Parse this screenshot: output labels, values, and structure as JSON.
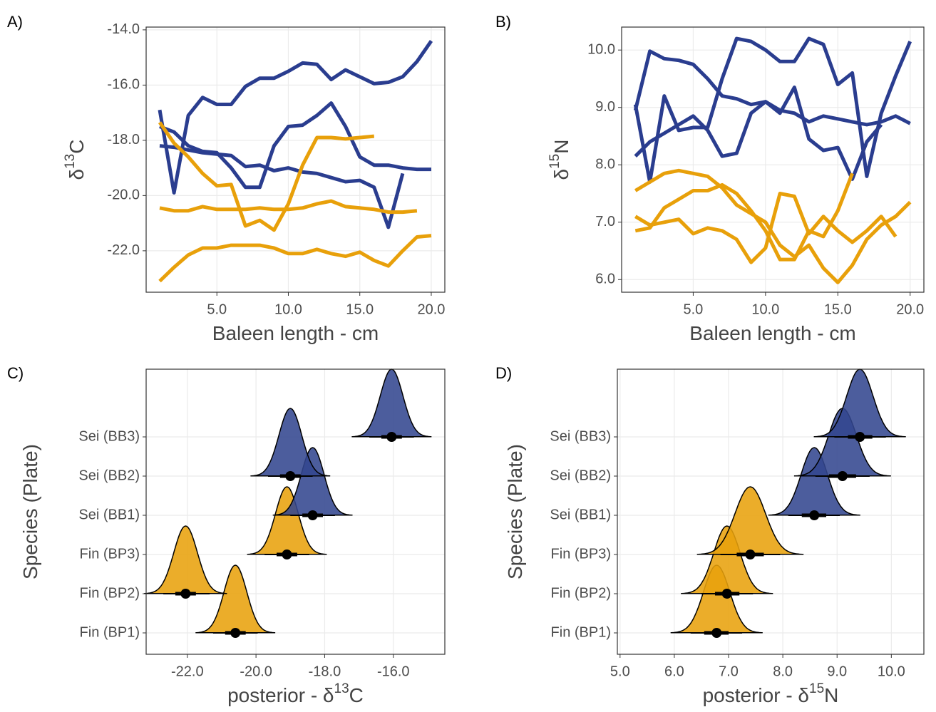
{
  "chart_data": [
    {
      "type": "line",
      "title": "A)",
      "x_label": [
        "Baleen length - cm"
      ],
      "y_label": [
        "δ",
        "13",
        "C"
      ],
      "x": [
        1,
        2,
        3,
        4,
        5,
        6,
        7,
        8,
        9,
        10,
        11,
        12,
        13,
        14,
        15,
        16,
        17,
        18,
        19,
        20
      ],
      "series": [
        {
          "color": "#2a3d8f",
          "values": [
            -16.9,
            -19.9,
            -17.1,
            -16.45,
            -16.7,
            -16.7,
            -16.05,
            -15.75,
            -15.75,
            -15.5,
            -15.2,
            -15.25,
            -15.8,
            -15.45,
            -15.7,
            -15.95,
            -15.9,
            -15.7,
            -15.15,
            -14.4
          ]
        },
        {
          "color": "#2a3d8f",
          "values": [
            -18.2,
            -18.25,
            -18.35,
            -18.45,
            -18.5,
            -18.55,
            -18.95,
            -18.9,
            -19.1,
            -19.0,
            -19.15,
            -19.2,
            -19.35,
            -19.5,
            -19.45,
            -19.7,
            -21.15,
            -19.2,
            null,
            null
          ]
        },
        {
          "color": "#2a3d8f",
          "values": [
            -17.5,
            -17.7,
            -18.2,
            -18.4,
            -18.45,
            -19.0,
            -19.7,
            -19.7,
            -18.2,
            -17.5,
            -17.45,
            -17.1,
            -16.65,
            -17.5,
            -18.6,
            -18.9,
            -18.9,
            -19.0,
            -19.05,
            -19.05
          ]
        },
        {
          "color": "#e8a00a",
          "values": [
            -17.35,
            -18.1,
            -18.6,
            -19.2,
            -19.65,
            -19.6,
            -21.1,
            -20.9,
            -21.25,
            -20.3,
            -18.9,
            -17.9,
            -17.9,
            -17.95,
            -17.9,
            -17.85,
            null,
            null,
            null,
            null
          ]
        },
        {
          "color": "#e8a00a",
          "values": [
            -20.45,
            -20.55,
            -20.55,
            -20.4,
            -20.5,
            -20.5,
            -20.5,
            -20.45,
            -20.5,
            -20.5,
            -20.45,
            -20.3,
            -20.2,
            -20.4,
            -20.45,
            -20.5,
            -20.6,
            -20.6,
            -20.55,
            null
          ]
        },
        {
          "color": "#e8a00a",
          "values": [
            -23.1,
            -22.6,
            -22.15,
            -21.9,
            -21.9,
            -21.8,
            -21.8,
            -21.8,
            -21.9,
            -22.1,
            -22.1,
            -21.95,
            -22.1,
            -22.2,
            -22.05,
            -22.35,
            -22.55,
            -22.0,
            -21.5,
            -21.45
          ]
        }
      ],
      "xlim": [
        0.05,
        20.95
      ],
      "xticks": [
        {
          "value": 5,
          "label": "5.0"
        },
        {
          "value": 10,
          "label": "10.0"
        },
        {
          "value": 15,
          "label": "15.0"
        },
        {
          "value": 20,
          "label": "20.0"
        }
      ],
      "ylim": [
        -23.5,
        -13.9
      ],
      "yticks": [
        {
          "value": -22,
          "label": "-22.0"
        },
        {
          "value": -20,
          "label": "-20.0"
        },
        {
          "value": -18,
          "label": "-18.0"
        },
        {
          "value": -16,
          "label": "-16.0"
        },
        {
          "value": -14,
          "label": "-14.0"
        }
      ],
      "grid": true
    },
    {
      "type": "line",
      "title": "B)",
      "x_label": [
        "Baleen length - cm"
      ],
      "y_label": [
        "δ",
        "15",
        "N"
      ],
      "x": [
        1,
        2,
        3,
        4,
        5,
        6,
        7,
        8,
        9,
        10,
        11,
        12,
        13,
        14,
        15,
        16,
        17,
        18,
        19,
        20
      ],
      "series": [
        {
          "color": "#2a3d8f",
          "values": [
            8.95,
            9.98,
            9.85,
            9.82,
            9.75,
            9.5,
            9.2,
            9.15,
            9.05,
            9.1,
            8.95,
            8.9,
            8.75,
            8.85,
            8.8,
            8.75,
            8.7,
            8.75,
            8.85,
            8.72
          ]
        },
        {
          "color": "#2a3d8f",
          "values": [
            8.15,
            8.4,
            8.55,
            8.7,
            8.85,
            8.6,
            8.15,
            8.2,
            8.9,
            9.1,
            8.9,
            9.35,
            8.45,
            8.25,
            8.3,
            7.75,
            8.4,
            8.7,
            null,
            null
          ]
        },
        {
          "color": "#2a3d8f",
          "values": [
            9.05,
            7.7,
            9.2,
            8.6,
            8.65,
            8.65,
            9.5,
            10.2,
            10.15,
            10.0,
            9.8,
            9.8,
            10.2,
            10.1,
            9.4,
            9.6,
            7.8,
            8.9,
            9.55,
            10.15
          ]
        },
        {
          "color": "#e8a00a",
          "values": [
            7.55,
            7.7,
            7.85,
            7.9,
            7.85,
            7.8,
            7.6,
            7.3,
            7.15,
            7.0,
            6.6,
            6.4,
            6.6,
            6.2,
            5.95,
            6.25,
            6.7,
            6.95,
            7.1,
            7.35
          ]
        },
        {
          "color": "#e8a00a",
          "values": [
            7.1,
            6.95,
            7.0,
            7.05,
            6.8,
            6.9,
            6.85,
            6.7,
            6.3,
            6.55,
            7.5,
            7.45,
            6.8,
            7.1,
            6.85,
            6.65,
            6.85,
            7.1,
            6.75,
            null
          ]
        },
        {
          "color": "#e8a00a",
          "values": [
            6.85,
            6.9,
            7.25,
            7.4,
            7.55,
            7.55,
            7.65,
            7.5,
            7.2,
            6.85,
            6.35,
            6.35,
            6.85,
            6.75,
            7.2,
            7.85,
            null,
            null,
            null,
            null
          ]
        }
      ],
      "xlim": [
        0.05,
        20.95
      ],
      "xticks": [
        {
          "value": 5,
          "label": "5.0"
        },
        {
          "value": 10,
          "label": "10.0"
        },
        {
          "value": 15,
          "label": "15.0"
        },
        {
          "value": 20,
          "label": "20.0"
        }
      ],
      "ylim": [
        5.78,
        10.4
      ],
      "yticks": [
        {
          "value": 6,
          "label": "6.0"
        },
        {
          "value": 7,
          "label": "7.0"
        },
        {
          "value": 8,
          "label": "8.0"
        },
        {
          "value": 9,
          "label": "9.0"
        },
        {
          "value": 10,
          "label": "10.0"
        }
      ],
      "grid": true
    },
    {
      "type": "halfeye",
      "title": "C)",
      "x_label": [
        "posterior - δ",
        "13",
        "C"
      ],
      "y_label": [
        "Species (Plate)"
      ],
      "categories": [
        "Fin (BP1)",
        "Fin (BP2)",
        "Fin (BP3)",
        "Sei (BB1)",
        "Sei (BB2)",
        "Sei (BB3)"
      ],
      "colors": [
        "#e8a20c",
        "#e8a20c",
        "#e8a20c",
        "#33478f",
        "#33478f",
        "#33478f"
      ],
      "medians": [
        -20.6,
        -22.05,
        -19.1,
        -18.35,
        -19.0,
        -16.05
      ],
      "intervals_66": [
        [
          -20.9,
          -20.3
        ],
        [
          -22.35,
          -21.75
        ],
        [
          -19.4,
          -18.8
        ],
        [
          -18.65,
          -18.05
        ],
        [
          -19.3,
          -18.7
        ],
        [
          -16.35,
          -15.75
        ]
      ],
      "intervals_95": [
        [
          -21.25,
          -19.95
        ],
        [
          -22.7,
          -21.35
        ],
        [
          -19.75,
          -18.45
        ],
        [
          -19.0,
          -17.7
        ],
        [
          -19.65,
          -18.35
        ],
        [
          -16.7,
          -15.4
        ]
      ],
      "xlim": [
        -23.2,
        -14.5
      ],
      "xticks": [
        {
          "value": -22,
          "label": "-22.0"
        },
        {
          "value": -20,
          "label": "-20.0"
        },
        {
          "value": -18,
          "label": "-18.0"
        },
        {
          "value": -16,
          "label": "-16.0"
        }
      ],
      "grid": true
    },
    {
      "type": "halfeye",
      "title": "D)",
      "x_label": [
        "posterior - δ",
        "15",
        "N"
      ],
      "y_label": [
        "Species (Plate)"
      ],
      "categories": [
        "Fin (BP1)",
        "Fin (BP2)",
        "Fin (BP3)",
        "Sei (BB1)",
        "Sei (BB2)",
        "Sei (BB3)"
      ],
      "colors": [
        "#e8a20c",
        "#e8a20c",
        "#e8a20c",
        "#33478f",
        "#33478f",
        "#33478f"
      ],
      "medians": [
        6.78,
        6.97,
        7.4,
        8.58,
        9.1,
        9.42
      ],
      "intervals_66": [
        [
          6.55,
          7.0
        ],
        [
          6.75,
          7.2
        ],
        [
          7.15,
          7.65
        ],
        [
          8.35,
          8.8
        ],
        [
          8.85,
          9.35
        ],
        [
          9.2,
          9.65
        ]
      ],
      "intervals_95": [
        [
          6.3,
          7.25
        ],
        [
          6.5,
          7.45
        ],
        [
          6.85,
          7.95
        ],
        [
          8.1,
          9.05
        ],
        [
          8.6,
          9.6
        ],
        [
          8.95,
          9.9
        ]
      ],
      "xlim": [
        4.95,
        10.6
      ],
      "xticks": [
        {
          "value": 5,
          "label": "5.0"
        },
        {
          "value": 6,
          "label": "6.0"
        },
        {
          "value": 7,
          "label": "7.0"
        },
        {
          "value": 8,
          "label": "8.0"
        },
        {
          "value": 9,
          "label": "9.0"
        },
        {
          "value": 10,
          "label": "10.0"
        }
      ],
      "grid": true
    }
  ]
}
